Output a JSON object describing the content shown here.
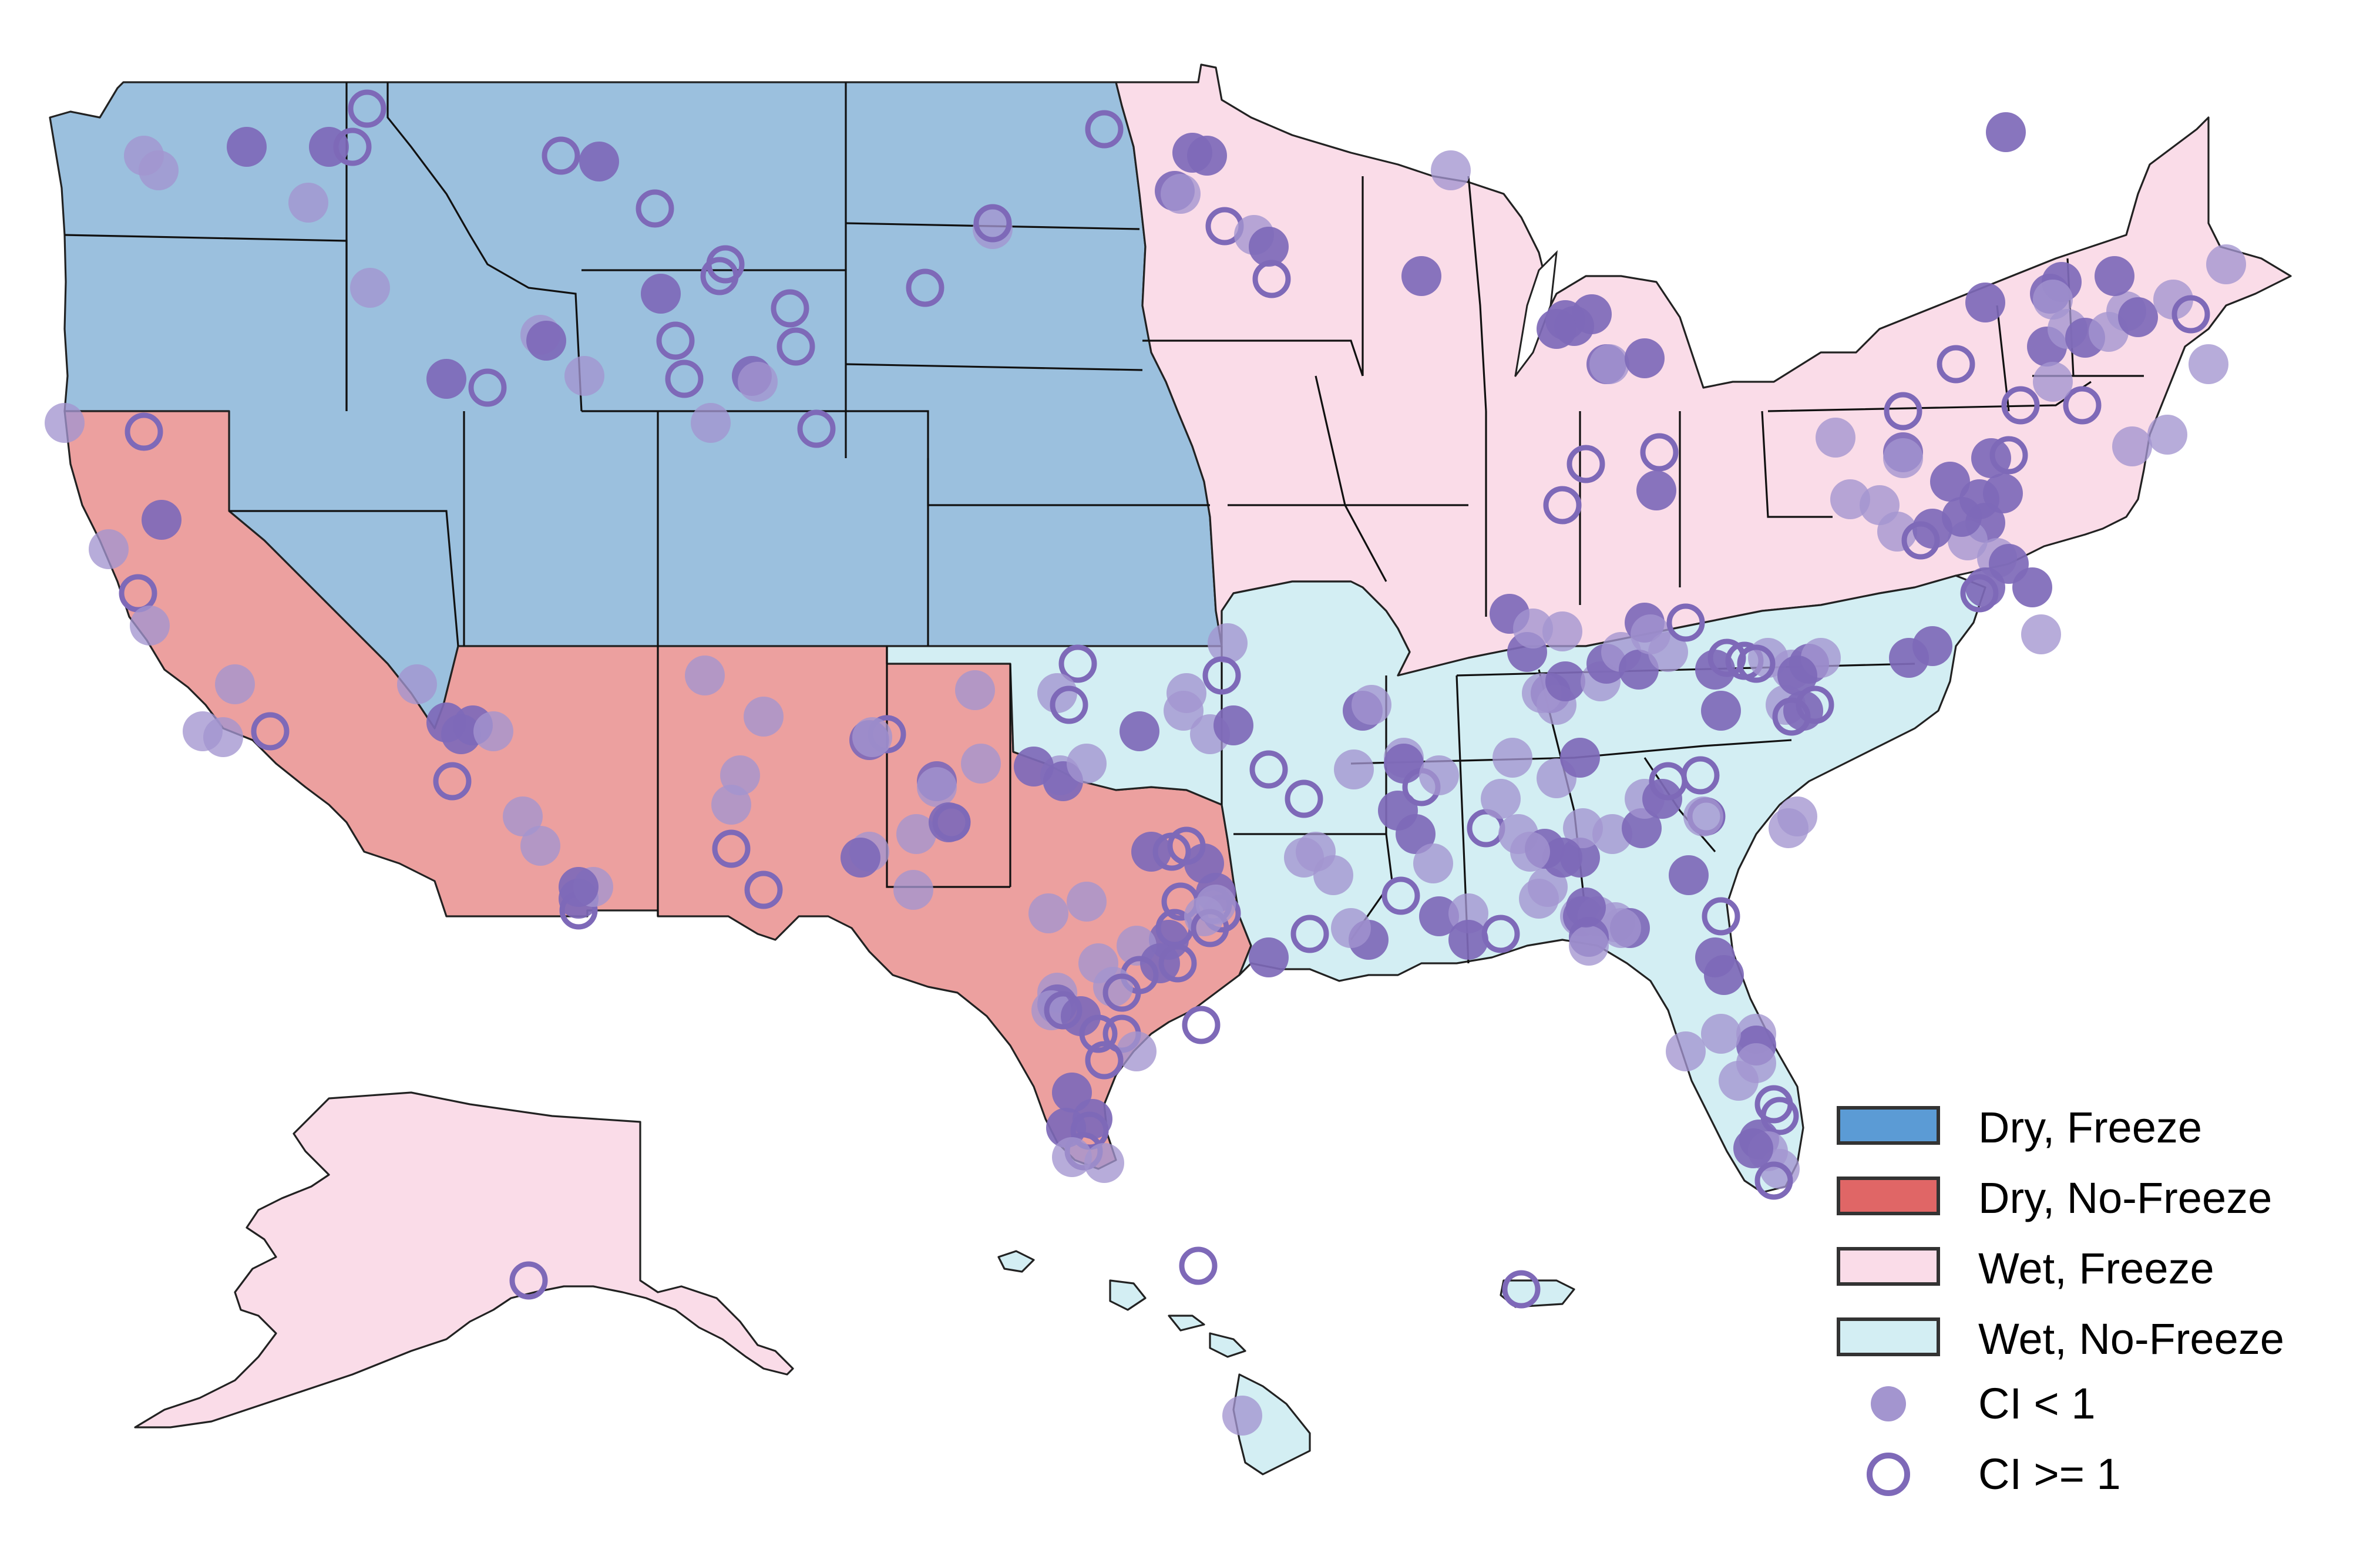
{
  "legend": {
    "items": [
      {
        "label": "Dry, Freeze",
        "color": "#5b9bd5",
        "swatch_fill": "#5b9bd5"
      },
      {
        "label": "Dry, No-Freeze",
        "color": "#e06666",
        "swatch_fill": "#e06666"
      },
      {
        "label": "Wet, Freeze",
        "color": "#fadce8",
        "swatch_fill": "#fadce8"
      },
      {
        "label": "Wet, No-Freeze",
        "color": "#d3eef3",
        "swatch_fill": "#d3eef3"
      },
      {
        "label": "CI < 1",
        "marker": "filled-circle",
        "color": "#8f7fc4"
      },
      {
        "label": "CI >= 1",
        "marker": "open-circle",
        "color": "#8f7fc4"
      }
    ]
  },
  "regions": {
    "dry_freeze": {
      "fill": "#9bc0de",
      "name": ""
    },
    "dry_no_freeze": {
      "fill": "#eca09f",
      "name": ""
    },
    "wet_freeze": {
      "fill": "#fadce8",
      "name": ""
    },
    "wet_no_freeze": {
      "fill": "#d3eef3",
      "name": ""
    }
  },
  "marker_color": "#7e69b8",
  "marker_color_light": "#a395cf"
}
